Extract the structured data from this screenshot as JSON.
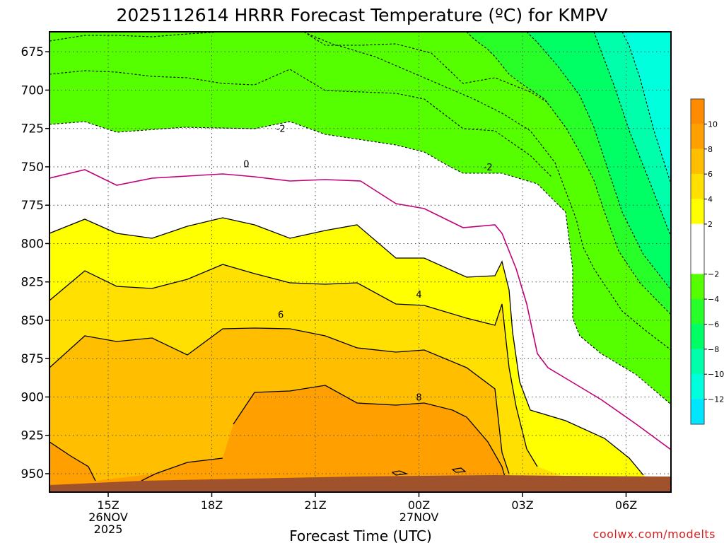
{
  "chart_data": {
    "type": "contour",
    "title": "2025112614 HRRR Forecast Temperature (ºC) for KMPV",
    "xlabel": "Forecast Time (UTC)",
    "ylabel": "",
    "y_axis": "pressure (hPa), inverted",
    "ylim": [
      962,
      662
    ],
    "y_ticks": [
      "675",
      "700",
      "725",
      "750",
      "775",
      "800",
      "825",
      "850",
      "875",
      "900",
      "925",
      "950"
    ],
    "x_range_hours": [
      -1.7,
      16.3
    ],
    "x_ticks": [
      {
        "hour": 0,
        "line1": "15Z",
        "line2": "26NOV",
        "line3": "2025"
      },
      {
        "hour": 3,
        "line1": "18Z",
        "line2": "",
        "line3": ""
      },
      {
        "hour": 6,
        "line1": "21Z",
        "line2": "",
        "line3": ""
      },
      {
        "hour": 9,
        "line1": "00Z",
        "line2": "27NOV",
        "line3": ""
      },
      {
        "hour": 12,
        "line1": "03Z",
        "line2": "",
        "line3": ""
      },
      {
        "hour": 15,
        "line1": "06Z",
        "line2": "",
        "line3": ""
      }
    ],
    "grid": "dotted",
    "colorbar": {
      "position": "right",
      "bands": [
        {
          "from": 10,
          "to": 12,
          "color": "#ff8c00"
        },
        {
          "from": 8,
          "to": 10,
          "color": "#ffa000"
        },
        {
          "from": 6,
          "to": 8,
          "color": "#ffbe00"
        },
        {
          "from": 4,
          "to": 6,
          "color": "#ffe000"
        },
        {
          "from": 2,
          "to": 4,
          "color": "#ffff00"
        },
        {
          "from": -2,
          "to": 2,
          "color": "#ffffff"
        },
        {
          "from": -4,
          "to": -2,
          "color": "#55ff00"
        },
        {
          "from": -6,
          "to": -4,
          "color": "#28ff28"
        },
        {
          "from": -8,
          "to": -6,
          "color": "#00ff64"
        },
        {
          "from": -10,
          "to": -8,
          "color": "#00ffaa"
        },
        {
          "from": -12,
          "to": -10,
          "color": "#00ffdd"
        },
        {
          "from": -14,
          "to": -12,
          "color": "#00e6ff"
        }
      ],
      "ticks": [
        "10",
        "8",
        "6",
        "4",
        "2",
        "−2",
        "−4",
        "−6",
        "−8",
        "−10",
        "−12"
      ]
    },
    "contour_labels": [
      {
        "value": "-2",
        "hour": 5.0,
        "p": 725
      },
      {
        "value": "0",
        "hour": 4.0,
        "p": 748
      },
      {
        "value": "-2",
        "hour": 11.0,
        "p": 750
      },
      {
        "value": "4",
        "hour": 9.0,
        "p": 833
      },
      {
        "value": "6",
        "hour": 5.0,
        "p": 846
      },
      {
        "value": "8",
        "hour": 9.0,
        "p": 900
      }
    ],
    "ground_color": "#a0522d",
    "zero_isotherm_color": "#c0007a"
  },
  "credit": "coolwx.com/modelts"
}
